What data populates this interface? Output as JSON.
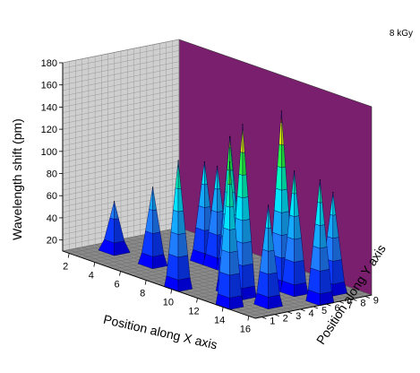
{
  "chart_data": {
    "type": "3d-bar",
    "annotation": "8 kGy",
    "zlabel": "Wavelength shift (pm)",
    "xlabel": "Position along X axis",
    "ylabel": "Position along Y axis",
    "z_ticks": [
      20,
      40,
      60,
      80,
      100,
      120,
      140,
      160,
      180
    ],
    "x_ticks": [
      2,
      4,
      6,
      8,
      10,
      12,
      14,
      16
    ],
    "y_ticks": [
      1,
      2,
      3,
      4,
      5,
      6,
      7,
      8,
      9
    ],
    "zlim": [
      10,
      180
    ],
    "xlim": [
      1.5,
      16.5
    ],
    "ylim": [
      0.5,
      9.5
    ],
    "spikes": [
      {
        "x": 3,
        "y": 3,
        "z": 55
      },
      {
        "x": 6,
        "y": 3,
        "z": 80
      },
      {
        "x": 7,
        "y": 6,
        "z": 100
      },
      {
        "x": 8,
        "y": 6,
        "z": 100
      },
      {
        "x": 9,
        "y": 6,
        "z": 130
      },
      {
        "x": 10,
        "y": 1,
        "z": 125
      },
      {
        "x": 12,
        "y": 3,
        "z": 150
      },
      {
        "x": 13,
        "y": 3,
        "z": 165
      },
      {
        "x": 13,
        "y": 6,
        "z": 170
      },
      {
        "x": 14,
        "y": 1,
        "z": 140
      },
      {
        "x": 14,
        "y": 6,
        "z": 120
      },
      {
        "x": 15,
        "y": 3,
        "z": 100
      },
      {
        "x": 15,
        "y": 8,
        "z": 100
      },
      {
        "x": 16,
        "y": 6,
        "z": 120
      }
    ],
    "color_bands": [
      {
        "from": 0,
        "to": 20,
        "color": "#0000ff"
      },
      {
        "from": 20,
        "to": 40,
        "color": "#0a38ff"
      },
      {
        "from": 40,
        "to": 60,
        "color": "#1f7dff"
      },
      {
        "from": 60,
        "to": 80,
        "color": "#14aaff"
      },
      {
        "from": 80,
        "to": 100,
        "color": "#00e6ff"
      },
      {
        "from": 100,
        "to": 120,
        "color": "#00ffc0"
      },
      {
        "from": 120,
        "to": 140,
        "color": "#28ff46"
      },
      {
        "from": 140,
        "to": 160,
        "color": "#e6ff00"
      },
      {
        "from": 160,
        "to": 180,
        "color": "#ff5a00"
      }
    ],
    "wall_colors": {
      "left": "#cfcfcf",
      "right": "#7a1e6e",
      "floor": "#8a8a8a"
    },
    "grid": true
  }
}
